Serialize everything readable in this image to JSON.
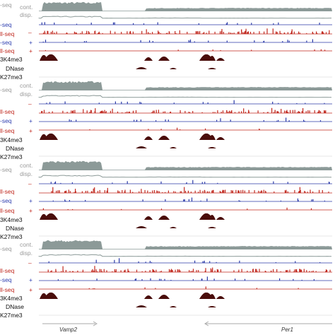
{
  "colors": {
    "cont": "#8c9a98",
    "plus_strand": "#2b3aa8",
    "minus_strand": "#c0281e",
    "chip": "#4a0d0b",
    "label_blue": "#2f3fb0",
    "label_red": "#c0281e",
    "label_gray": "#9a9a9a",
    "label_black": "#111111",
    "line_gray": "#aaaaaa"
  },
  "panels": [
    {
      "labels": {
        "cont": "cont.",
        "disp": "disp.",
        "seq_plus": "-seq",
        "minus_sign": "–",
        "seq_minus": "ll-seq",
        "plus_sign": "+",
        "h3k4me3": "3K4me3",
        "dnase": "DNase",
        "h3k27me3": "K27me3"
      }
    },
    {
      "labels": {
        "cont": "cont.",
        "disp": "disp.",
        "seq_plus": "-seq",
        "minus_sign": "–",
        "seq_minus": "ll-seq",
        "plus_sign": "+",
        "h3k4me3": "3K4me3",
        "dnase": "DNase",
        "h3k27me3": "K27me3"
      }
    },
    {
      "labels": {
        "cont": "cont.",
        "disp": "disp.",
        "seq_plus": "-seq",
        "minus_sign": "–",
        "seq_minus": "ll-seq",
        "plus_sign": "+",
        "h3k4me3": "3K4me3",
        "dnase": "DNase",
        "h3k27me3": "K27me3"
      }
    },
    {
      "labels": {
        "cont": "cont.",
        "disp": "disp.",
        "seq_plus": "-seq",
        "minus_sign": "–",
        "seq_minus": "ll-seq",
        "plus_sign": "+",
        "h3k4me3": "3K4me3",
        "dnase": "DNase",
        "h3k27me3": "K27me3"
      }
    }
  ],
  "genes": [
    {
      "name": "Vamp2",
      "strand": "+"
    },
    {
      "name": "Per1",
      "strand": "-"
    }
  ]
}
